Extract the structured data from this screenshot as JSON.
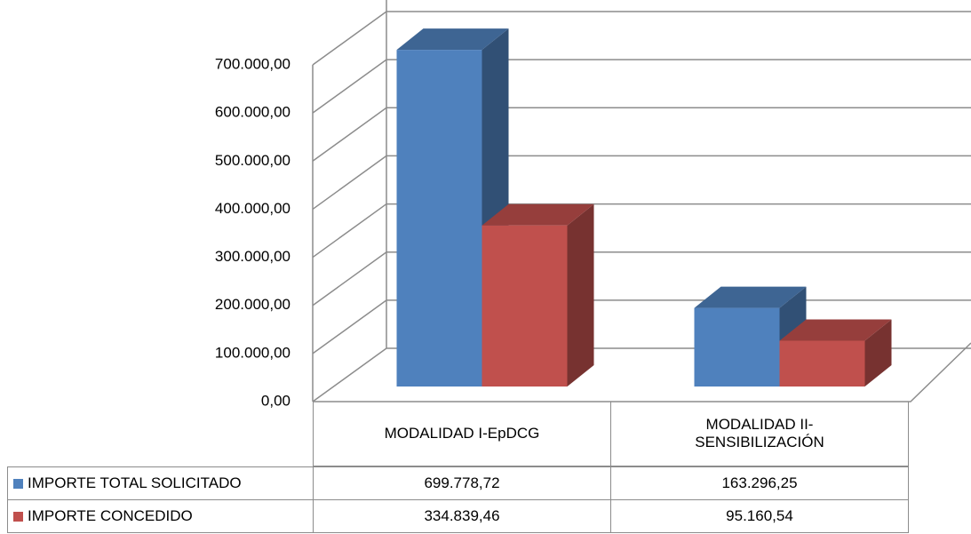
{
  "chart_data": {
    "type": "bar3d",
    "categories": [
      "MODALIDAD I-EpDCG",
      "MODALIDAD II-SENSIBILIZACIÓN"
    ],
    "series": [
      {
        "name": "IMPORTE TOTAL SOLICITADO",
        "color": "#4f81bd",
        "values": [
          699778.72,
          163296.25
        ],
        "value_labels": [
          "699.778,72",
          "163.296,25"
        ]
      },
      {
        "name": "IMPORTE CONCEDIDO",
        "color": "#c0504d",
        "values": [
          334839.46,
          95160.54
        ],
        "value_labels": [
          "334.839,46",
          "95.160,54"
        ]
      }
    ],
    "ylim": [
      0,
      700000
    ],
    "yticks": [
      {
        "value": 0,
        "label": "0,00"
      },
      {
        "value": 100000,
        "label": "100.000,00"
      },
      {
        "value": 200000,
        "label": "200.000,00"
      },
      {
        "value": 300000,
        "label": "300.000,00"
      },
      {
        "value": 400000,
        "label": "400.000,00"
      },
      {
        "value": 500000,
        "label": "500.000,00"
      },
      {
        "value": 600000,
        "label": "600.000,00"
      },
      {
        "value": 700000,
        "label": "700.000,00"
      }
    ],
    "grid": true,
    "data_table": true
  }
}
